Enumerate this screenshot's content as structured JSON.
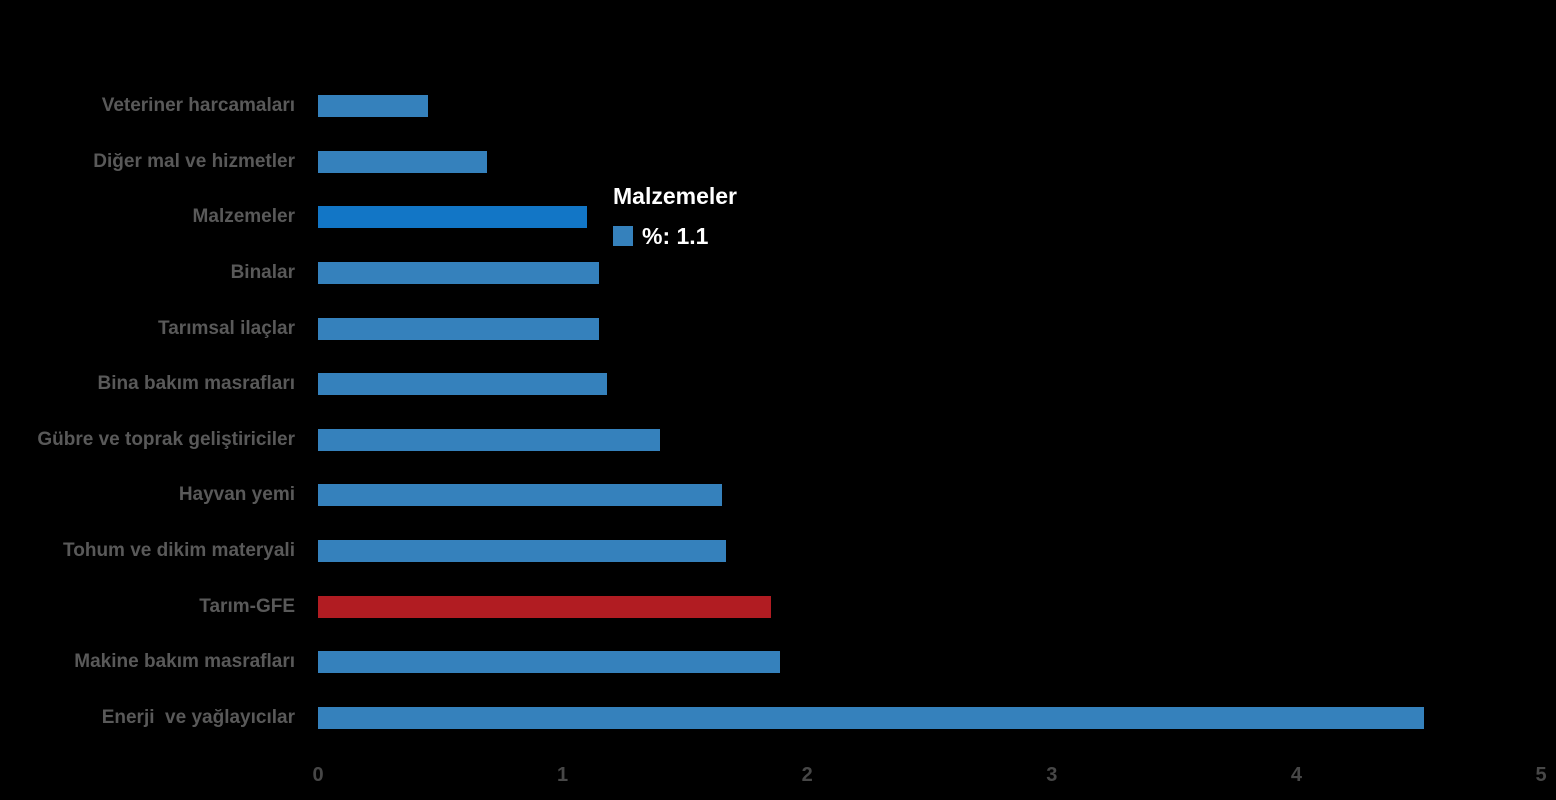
{
  "chart_data": {
    "type": "bar",
    "orientation": "horizontal",
    "title": "",
    "xlabel": "",
    "ylabel": "",
    "grid": false,
    "legend_position": "none",
    "xlim": [
      0,
      5
    ],
    "x_ticks": [
      "0",
      "1",
      "2",
      "3",
      "4",
      "5"
    ],
    "series_name": "%",
    "categories": [
      "Veteriner harcamaları",
      "Diğer mal ve hizmetler",
      "Malzemeler",
      "Binalar",
      "Tarımsal ilaçlar",
      "Bina bakım masrafları",
      "Gübre ve toprak geliştiriciler",
      "Hayvan yemi",
      "Tohum ve dikim materyali",
      "Tarım-GFE",
      "Makine bakım masrafları",
      "Enerji  ve yağlayıcılar"
    ],
    "values": [
      0.45,
      0.69,
      1.1,
      1.15,
      1.15,
      1.18,
      1.4,
      1.65,
      1.67,
      1.85,
      1.89,
      4.52
    ],
    "highlighted_category": "Malzemeler",
    "accent_category": "Tarım-GFE",
    "colors": {
      "bar": "#3581bc",
      "bar_highlight": "#1276c6",
      "bar_accent": "#b11c22",
      "category_label": "#595959",
      "axis_label": "#474747",
      "background": "#000000",
      "tooltip_text": "#ffffff"
    }
  },
  "tooltip": {
    "title": "Malzemeler",
    "series_label": "%",
    "value": "1.1",
    "text": "%: 1.1"
  }
}
